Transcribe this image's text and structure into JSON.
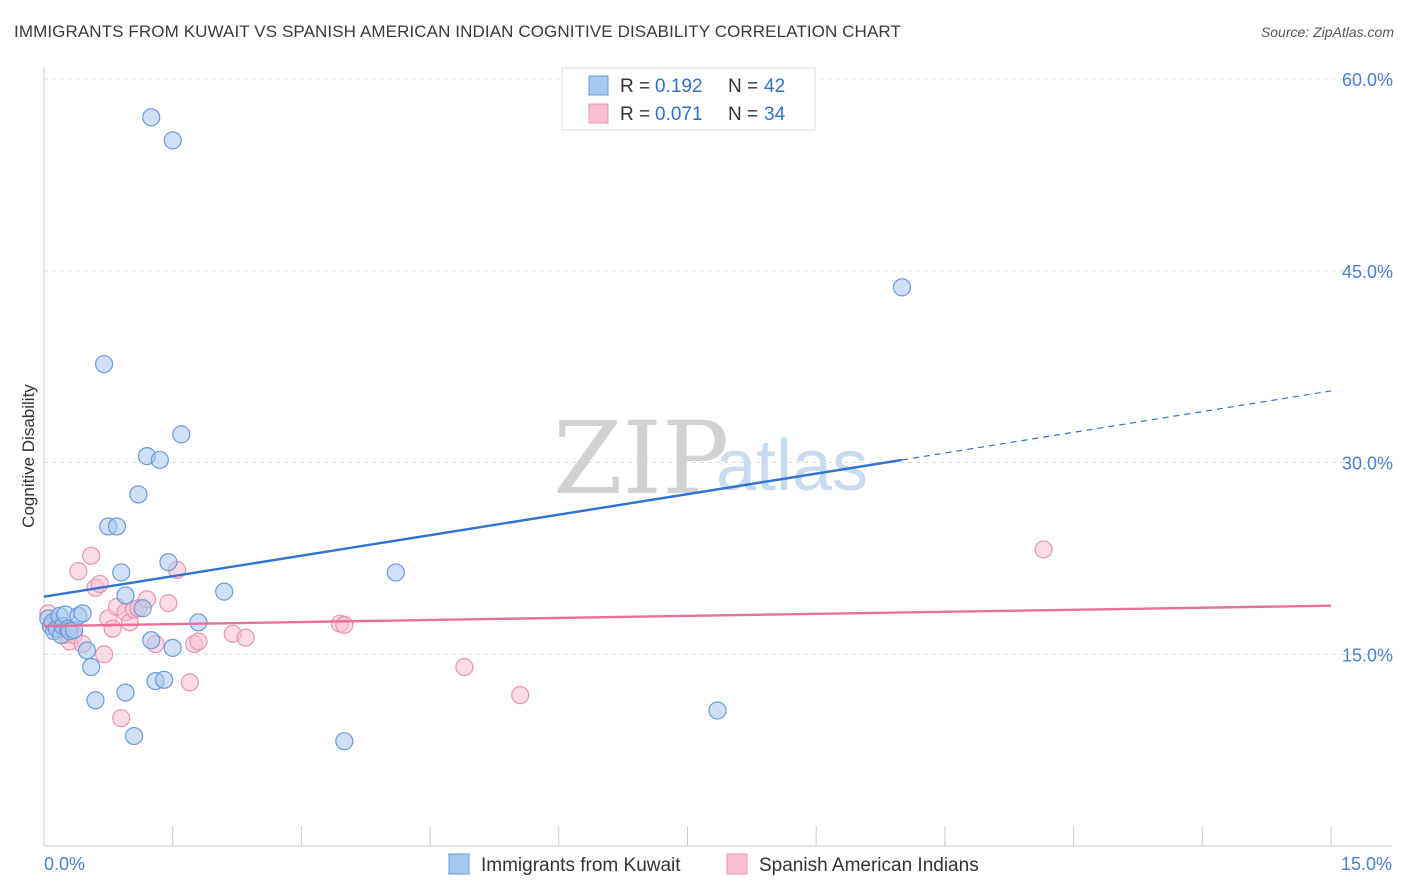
{
  "title": "IMMIGRANTS FROM KUWAIT VS SPANISH AMERICAN INDIAN COGNITIVE DISABILITY CORRELATION CHART",
  "source": "Source: ZipAtlas.com",
  "watermark": {
    "zip": "ZIP",
    "atlas": "atlas"
  },
  "colors": {
    "blue_fill": "#a9c8f0",
    "blue_stroke": "#6b9bd8",
    "blue_line": "#2f74d0",
    "pink_fill": "#f7bfd0",
    "pink_stroke": "#e995b1",
    "pink_line": "#e8719b",
    "grid": "#dcdcdc",
    "tick_text": "#4a7fd1"
  },
  "legend": {
    "r_label": "R =",
    "n_label": "N =",
    "blue": {
      "r": "0.192",
      "n": "42"
    },
    "pink": {
      "r": "0.071",
      "n": "34"
    }
  },
  "bottom_legend": {
    "blue": "Immigrants from Kuwait",
    "pink": "Spanish American Indians"
  },
  "chart_data": {
    "type": "scatter",
    "title": "IMMIGRANTS FROM KUWAIT VS SPANISH AMERICAN INDIAN COGNITIVE DISABILITY CORRELATION CHART",
    "xlabel": "",
    "ylabel": "Cognitive Disability",
    "xlim": [
      0,
      15
    ],
    "ylim": [
      0,
      60
    ],
    "x_tick_labels": [
      "0.0%",
      "15.0%"
    ],
    "y_ticks": [
      15,
      30,
      45,
      60
    ],
    "y_tick_labels": [
      "15.0%",
      "30.0%",
      "45.0%",
      "60.0%"
    ],
    "grid": true,
    "series": [
      {
        "name": "Immigrants from Kuwait",
        "color": "blue",
        "r": 0.192,
        "n": 42,
        "trend": {
          "x0": 0,
          "y0": 19.5,
          "x1": 10.0,
          "y1": 30.2,
          "dash_to_x": 15,
          "dash_to_y": 35.6
        },
        "points": [
          [
            0.05,
            17.8
          ],
          [
            0.08,
            17.2
          ],
          [
            0.1,
            17.5
          ],
          [
            0.12,
            16.8
          ],
          [
            0.15,
            17.0
          ],
          [
            0.18,
            18.0
          ],
          [
            0.2,
            16.5
          ],
          [
            0.22,
            17.2
          ],
          [
            0.25,
            18.1
          ],
          [
            0.28,
            17.0
          ],
          [
            0.3,
            16.8
          ],
          [
            0.35,
            16.9
          ],
          [
            0.4,
            18.0
          ],
          [
            0.45,
            18.2
          ],
          [
            0.5,
            15.3
          ],
          [
            0.55,
            14.0
          ],
          [
            0.7,
            37.7
          ],
          [
            0.75,
            25.0
          ],
          [
            0.85,
            25.0
          ],
          [
            0.9,
            21.4
          ],
          [
            0.95,
            19.6
          ],
          [
            0.6,
            11.4
          ],
          [
            0.95,
            12.0
          ],
          [
            1.05,
            8.6
          ],
          [
            1.1,
            27.5
          ],
          [
            1.15,
            18.6
          ],
          [
            1.2,
            30.5
          ],
          [
            1.25,
            16.1
          ],
          [
            1.3,
            12.9
          ],
          [
            1.35,
            30.2
          ],
          [
            1.4,
            13.0
          ],
          [
            1.45,
            22.2
          ],
          [
            1.5,
            15.5
          ],
          [
            1.6,
            32.2
          ],
          [
            1.8,
            17.5
          ],
          [
            2.1,
            19.9
          ],
          [
            1.25,
            57.0
          ],
          [
            1.5,
            55.2
          ],
          [
            3.5,
            8.2
          ],
          [
            4.1,
            21.4
          ],
          [
            7.85,
            10.6
          ],
          [
            10.0,
            43.7
          ]
        ]
      },
      {
        "name": "Spanish American Indians",
        "color": "pink",
        "r": 0.071,
        "n": 34,
        "trend": {
          "x0": 0,
          "y0": 17.2,
          "x1": 15,
          "y1": 18.8
        },
        "points": [
          [
            0.05,
            18.2
          ],
          [
            0.1,
            17.5
          ],
          [
            0.15,
            17.0
          ],
          [
            0.25,
            16.5
          ],
          [
            0.3,
            16.0
          ],
          [
            0.35,
            16.5
          ],
          [
            0.4,
            21.5
          ],
          [
            0.45,
            15.8
          ],
          [
            0.55,
            22.7
          ],
          [
            0.6,
            20.2
          ],
          [
            0.65,
            20.5
          ],
          [
            0.7,
            15.0
          ],
          [
            0.75,
            17.8
          ],
          [
            0.8,
            17.0
          ],
          [
            0.85,
            18.7
          ],
          [
            0.9,
            10.0
          ],
          [
            0.95,
            18.3
          ],
          [
            1.0,
            17.5
          ],
          [
            1.05,
            18.5
          ],
          [
            1.1,
            18.6
          ],
          [
            1.2,
            19.3
          ],
          [
            1.3,
            15.8
          ],
          [
            1.45,
            19.0
          ],
          [
            1.55,
            21.6
          ],
          [
            1.7,
            12.8
          ],
          [
            1.75,
            15.8
          ],
          [
            1.8,
            16.0
          ],
          [
            2.2,
            16.6
          ],
          [
            2.35,
            16.3
          ],
          [
            3.45,
            17.4
          ],
          [
            3.5,
            17.3
          ],
          [
            4.9,
            14.0
          ],
          [
            5.55,
            11.8
          ],
          [
            11.65,
            23.2
          ]
        ]
      }
    ]
  }
}
